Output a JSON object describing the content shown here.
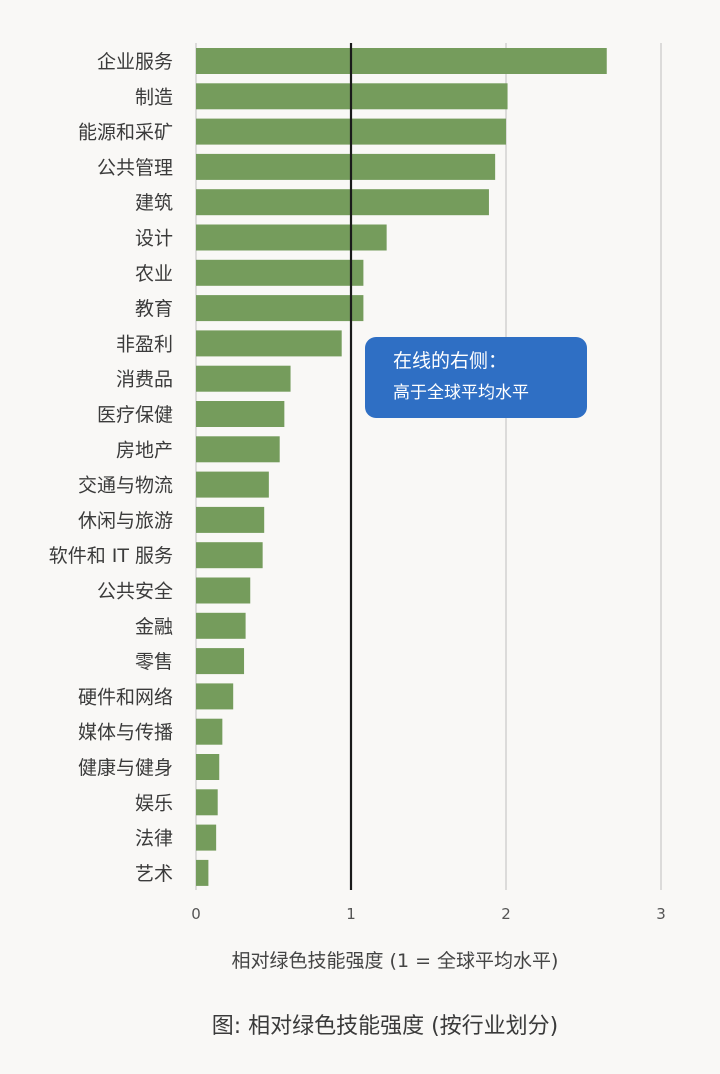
{
  "chart_data": {
    "type": "bar",
    "orientation": "horizontal",
    "categories": [
      "企业服务",
      "制造",
      "能源和采矿",
      "公共管理",
      "建筑",
      "设计",
      "农业",
      "教育",
      "非盈利",
      "消费品",
      "医疗保健",
      "房地产",
      "交通与物流",
      "休闲与旅游",
      "软件和 IT 服务",
      "公共安全",
      "金融",
      "零售",
      "硬件和网络",
      "媒体与传播",
      "健康与健身",
      "娱乐",
      "法律",
      "艺术"
    ],
    "values": [
      2.65,
      2.01,
      2.0,
      1.93,
      1.89,
      1.23,
      1.08,
      1.08,
      0.94,
      0.61,
      0.57,
      0.54,
      0.47,
      0.44,
      0.43,
      0.35,
      0.32,
      0.31,
      0.24,
      0.17,
      0.15,
      0.14,
      0.13,
      0.08
    ],
    "xlim": [
      0,
      3
    ],
    "xticks": [
      "0",
      "1",
      "2",
      "3"
    ],
    "grid": true,
    "reference_line": 1,
    "xlabel": "相对绿色技能强度 (1 = 全球平均水平)",
    "caption": "图: 相对绿色技能强度 (按行业划分)",
    "annotation": {
      "line1": "在线的右侧：",
      "line2": "高于全球平均水平"
    },
    "colors": {
      "bar": "#759c5c",
      "reference_line": "#1a1a1a",
      "grid": "#c8c8c8",
      "annotation_bg": "#2f6fc4"
    }
  }
}
